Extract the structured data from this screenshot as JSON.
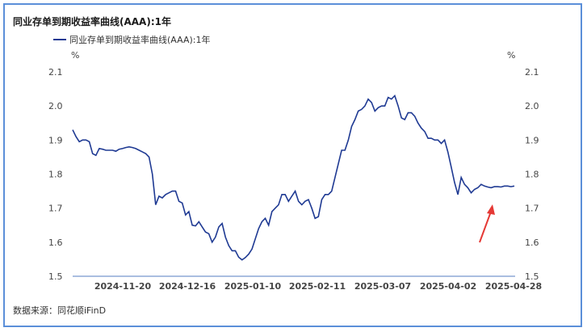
{
  "source_label": "数据来源：同花顺iFinD",
  "colors": {
    "line": "#1f3a93",
    "axis": "#8ea9d6",
    "arrow": "#e53935",
    "frame": "#5b8fd9"
  },
  "chart_data": {
    "type": "line",
    "title": "同业存单到期收益率曲线(AAA):1年",
    "y_unit_left": "%",
    "y_unit_right": "%",
    "ylim": [
      1.5,
      2.1
    ],
    "yticks": [
      "2.1",
      "2.0",
      "1.9",
      "1.8",
      "1.7",
      "1.6",
      "1.5"
    ],
    "xtick_labels": [
      "2024-11-20",
      "2024-12-16",
      "2025-01-10",
      "2025-02-11",
      "2025-03-07",
      "2025-04-02",
      "2025-04-28"
    ],
    "grid": false,
    "legend_position": "top-left",
    "series": [
      {
        "name": "同业存单到期收益率曲线(AAA):1年",
        "values": [
          1.93,
          1.91,
          1.895,
          1.9,
          1.9,
          1.895,
          1.86,
          1.855,
          1.875,
          1.873,
          1.87,
          1.87,
          1.87,
          1.867,
          1.873,
          1.875,
          1.878,
          1.88,
          1.878,
          1.875,
          1.87,
          1.865,
          1.86,
          1.85,
          1.8,
          1.71,
          1.735,
          1.73,
          1.74,
          1.745,
          1.75,
          1.75,
          1.72,
          1.715,
          1.68,
          1.69,
          1.65,
          1.648,
          1.66,
          1.645,
          1.63,
          1.625,
          1.6,
          1.615,
          1.645,
          1.655,
          1.615,
          1.59,
          1.575,
          1.575,
          1.556,
          1.548,
          1.555,
          1.565,
          1.58,
          1.61,
          1.64,
          1.66,
          1.67,
          1.65,
          1.69,
          1.7,
          1.71,
          1.74,
          1.74,
          1.72,
          1.735,
          1.75,
          1.72,
          1.71,
          1.72,
          1.725,
          1.7,
          1.67,
          1.675,
          1.725,
          1.74,
          1.74,
          1.75,
          1.79,
          1.83,
          1.87,
          1.87,
          1.9,
          1.94,
          1.96,
          1.985,
          1.99,
          2.0,
          2.02,
          2.01,
          1.985,
          1.995,
          2.0,
          2.0,
          2.025,
          2.02,
          2.03,
          2.0,
          1.965,
          1.96,
          1.98,
          1.98,
          1.97,
          1.95,
          1.935,
          1.925,
          1.905,
          1.905,
          1.9,
          1.9,
          1.89,
          1.9,
          1.865,
          1.82,
          1.775,
          1.74,
          1.79,
          1.77,
          1.76,
          1.745,
          1.755,
          1.76,
          1.77,
          1.765,
          1.762,
          1.76,
          1.763,
          1.763,
          1.762,
          1.765,
          1.765,
          1.763,
          1.765
        ]
      }
    ]
  }
}
